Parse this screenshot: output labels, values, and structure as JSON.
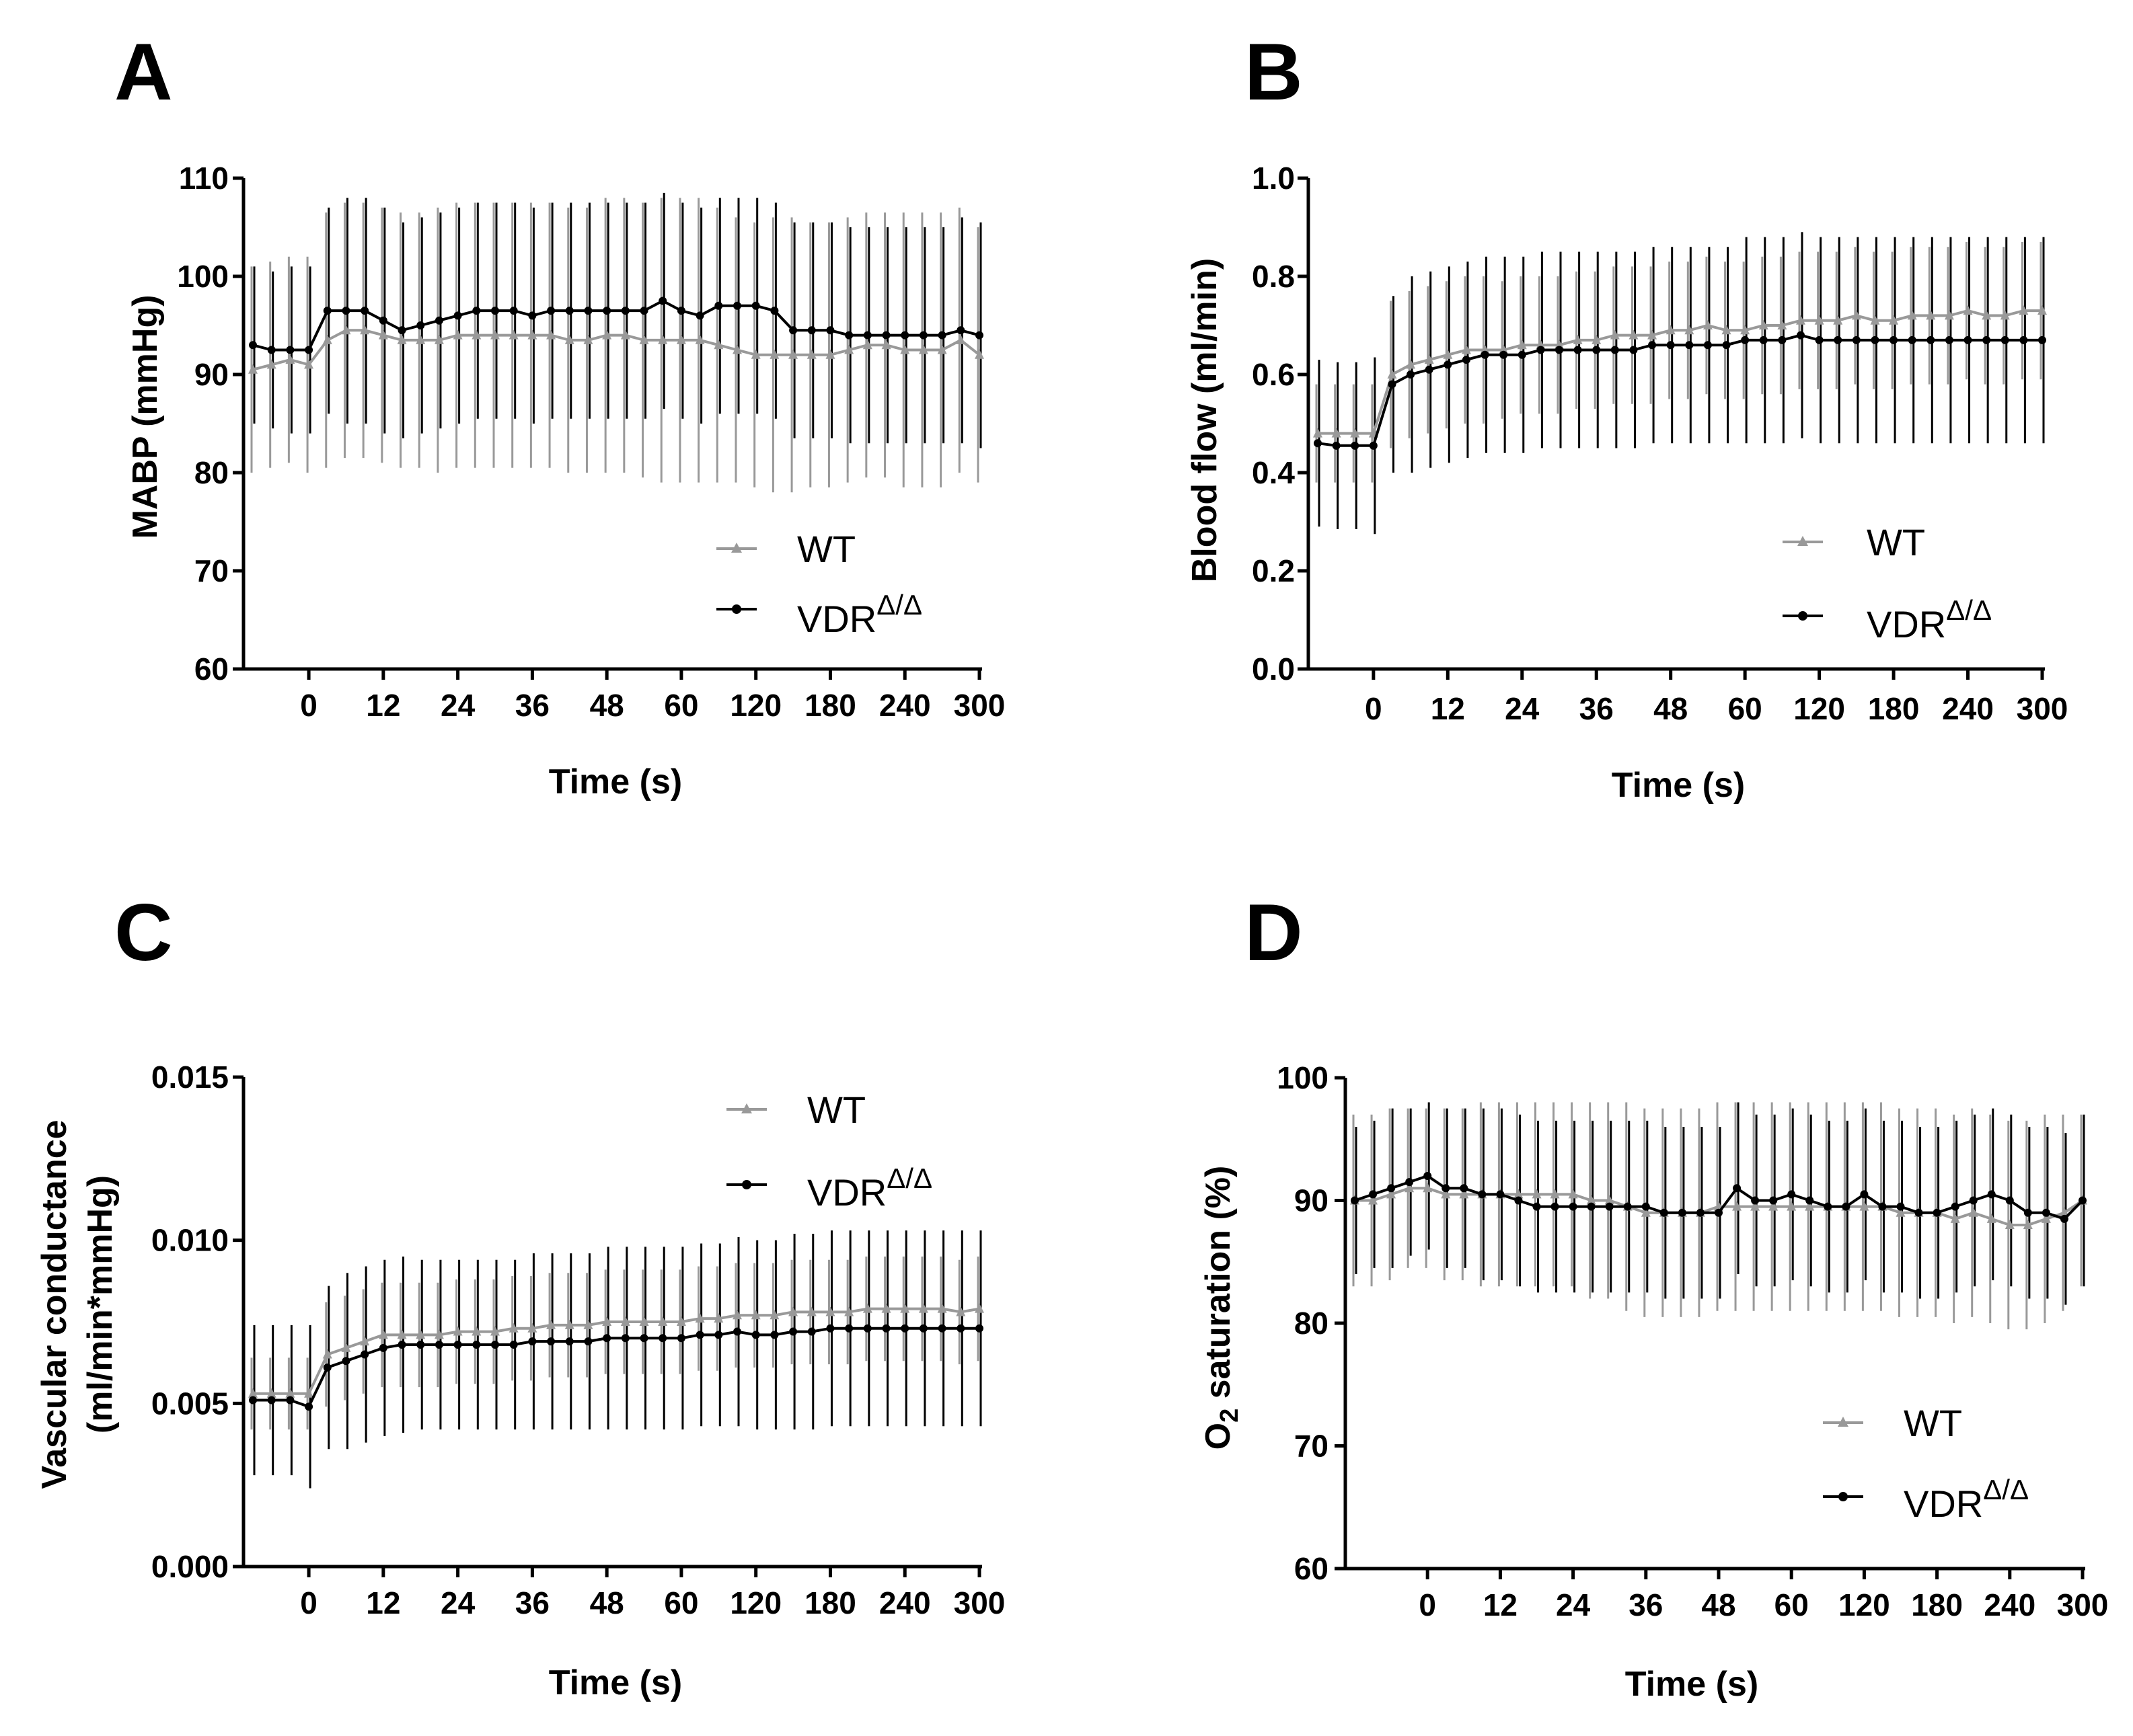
{
  "figure": {
    "panels": [
      "A",
      "B",
      "C",
      "D"
    ]
  },
  "chart_data": [
    {
      "type": "line",
      "panel": "A",
      "title": "",
      "xlabel": "Time (s)",
      "ylabel": "MABP (mmHg)",
      "ylim": [
        60,
        110
      ],
      "yticks": [
        "60",
        "70",
        "80",
        "90",
        "100",
        "110"
      ],
      "xticks": [
        "0",
        "12",
        "24",
        "36",
        "48",
        "60",
        "120",
        "180",
        "240",
        "300"
      ],
      "xtick_positions": [
        3,
        7,
        11,
        15,
        19,
        23,
        27,
        31,
        35,
        39
      ],
      "legend_position": "bottom-right",
      "n_points": 40,
      "series": [
        {
          "name": "WT",
          "color": "#999999",
          "marker": "triangle",
          "values": [
            90.5,
            91,
            91.5,
            91,
            93.5,
            94.5,
            94.5,
            94,
            93.5,
            93.5,
            93.5,
            94,
            94,
            94,
            94,
            94,
            94,
            93.5,
            93.5,
            94,
            94,
            93.5,
            93.5,
            93.5,
            93.5,
            93,
            92.5,
            92,
            92,
            92,
            92,
            92,
            92.5,
            93,
            93,
            92.5,
            92.5,
            92.5,
            93.5,
            92
          ],
          "errors": [
            10.5,
            10.5,
            10.5,
            11,
            13,
            13,
            13,
            13,
            13,
            13,
            13.5,
            13.5,
            13.5,
            13.5,
            13.5,
            13.5,
            13.5,
            13.5,
            13.5,
            14,
            14,
            14,
            14.5,
            14.5,
            14.5,
            14,
            13.5,
            13.5,
            14,
            14,
            13.5,
            13.5,
            13.5,
            13.5,
            13.5,
            14,
            14,
            14,
            13.5,
            13
          ]
        },
        {
          "name": "VDRΔ/Δ",
          "color": "#000000",
          "marker": "circle",
          "values": [
            93,
            92.5,
            92.5,
            92.5,
            96.5,
            96.5,
            96.5,
            95.5,
            94.5,
            95,
            95.5,
            96,
            96.5,
            96.5,
            96.5,
            96,
            96.5,
            96.5,
            96.5,
            96.5,
            96.5,
            96.5,
            97.5,
            96.5,
            96,
            97,
            97,
            97,
            96.5,
            94.5,
            94.5,
            94.5,
            94,
            94,
            94,
            94,
            94,
            94,
            94.5,
            94
          ],
          "errors": [
            8,
            8,
            8.5,
            8.5,
            10.5,
            11.5,
            11.5,
            11.5,
            11,
            11,
            11,
            11,
            11,
            11,
            11,
            11,
            11,
            11,
            11,
            11,
            11,
            11,
            11,
            11,
            11,
            11,
            11,
            11,
            11,
            11,
            11,
            11,
            11,
            11,
            11,
            11,
            11,
            11,
            11.5,
            11.5
          ]
        }
      ]
    },
    {
      "type": "line",
      "panel": "B",
      "title": "",
      "xlabel": "Time (s)",
      "ylabel": "Blood flow (ml/min)",
      "ylim": [
        0,
        1
      ],
      "yticks": [
        "0.0",
        "0.2",
        "0.4",
        "0.6",
        "0.8",
        "1.0"
      ],
      "xticks": [
        "0",
        "12",
        "24",
        "36",
        "48",
        "60",
        "120",
        "180",
        "240",
        "300"
      ],
      "xtick_positions": [
        3,
        7,
        11,
        15,
        19,
        23,
        27,
        31,
        35,
        39
      ],
      "legend_position": "bottom-right",
      "n_points": 40,
      "series": [
        {
          "name": "WT",
          "color": "#999999",
          "marker": "triangle",
          "values": [
            0.48,
            0.48,
            0.48,
            0.48,
            0.6,
            0.62,
            0.63,
            0.64,
            0.65,
            0.65,
            0.65,
            0.66,
            0.66,
            0.66,
            0.67,
            0.67,
            0.68,
            0.68,
            0.68,
            0.69,
            0.69,
            0.7,
            0.69,
            0.69,
            0.7,
            0.7,
            0.71,
            0.71,
            0.71,
            0.72,
            0.71,
            0.71,
            0.72,
            0.72,
            0.72,
            0.73,
            0.72,
            0.72,
            0.73,
            0.73
          ],
          "errors": [
            0.1,
            0.1,
            0.1,
            0.1,
            0.15,
            0.15,
            0.15,
            0.15,
            0.15,
            0.15,
            0.14,
            0.14,
            0.14,
            0.14,
            0.14,
            0.14,
            0.14,
            0.14,
            0.14,
            0.14,
            0.14,
            0.14,
            0.14,
            0.14,
            0.14,
            0.14,
            0.14,
            0.14,
            0.14,
            0.14,
            0.14,
            0.14,
            0.14,
            0.14,
            0.14,
            0.14,
            0.14,
            0.14,
            0.14,
            0.14
          ]
        },
        {
          "name": "VDRΔ/Δ",
          "color": "#000000",
          "marker": "circle",
          "values": [
            0.46,
            0.455,
            0.455,
            0.455,
            0.58,
            0.6,
            0.61,
            0.62,
            0.63,
            0.64,
            0.64,
            0.64,
            0.65,
            0.65,
            0.65,
            0.65,
            0.65,
            0.65,
            0.66,
            0.66,
            0.66,
            0.66,
            0.66,
            0.67,
            0.67,
            0.67,
            0.68,
            0.67,
            0.67,
            0.67,
            0.67,
            0.67,
            0.67,
            0.67,
            0.67,
            0.67,
            0.67,
            0.67,
            0.67,
            0.67
          ],
          "errors": [
            0.17,
            0.17,
            0.17,
            0.18,
            0.18,
            0.2,
            0.2,
            0.2,
            0.2,
            0.2,
            0.2,
            0.2,
            0.2,
            0.2,
            0.2,
            0.2,
            0.2,
            0.2,
            0.2,
            0.2,
            0.2,
            0.2,
            0.2,
            0.21,
            0.21,
            0.21,
            0.21,
            0.21,
            0.21,
            0.21,
            0.21,
            0.21,
            0.21,
            0.21,
            0.21,
            0.21,
            0.21,
            0.21,
            0.21,
            0.21
          ]
        }
      ]
    },
    {
      "type": "line",
      "panel": "C",
      "title": "",
      "xlabel": "Time (s)",
      "ylabel": "Vascular conductance",
      "ylabel2": "(ml/min*mmHg)",
      "ylim": [
        0,
        0.015
      ],
      "yticks": [
        "0.000",
        "0.005",
        "0.010",
        "0.015"
      ],
      "xticks": [
        "0",
        "12",
        "24",
        "36",
        "48",
        "60",
        "120",
        "180",
        "240",
        "300"
      ],
      "xtick_positions": [
        3,
        7,
        11,
        15,
        19,
        23,
        27,
        31,
        35,
        39
      ],
      "legend_position": "top-right",
      "n_points": 40,
      "series": [
        {
          "name": "WT",
          "color": "#999999",
          "marker": "triangle",
          "values": [
            0.0053,
            0.0053,
            0.0053,
            0.0053,
            0.0065,
            0.0067,
            0.0069,
            0.0071,
            0.0071,
            0.0071,
            0.0071,
            0.0072,
            0.0072,
            0.0072,
            0.0073,
            0.0073,
            0.0074,
            0.0074,
            0.0074,
            0.0075,
            0.0075,
            0.0075,
            0.0075,
            0.0075,
            0.0076,
            0.0076,
            0.0077,
            0.0077,
            0.0077,
            0.0078,
            0.0078,
            0.0078,
            0.0078,
            0.0079,
            0.0079,
            0.0079,
            0.0079,
            0.0079,
            0.0078,
            0.0079
          ],
          "errors": [
            0.0011,
            0.0011,
            0.0011,
            0.0011,
            0.0016,
            0.0016,
            0.0016,
            0.0016,
            0.0016,
            0.0016,
            0.0016,
            0.0016,
            0.0016,
            0.0016,
            0.0016,
            0.0016,
            0.0016,
            0.0016,
            0.0016,
            0.0016,
            0.0016,
            0.0016,
            0.0016,
            0.0016,
            0.0016,
            0.0016,
            0.0016,
            0.0016,
            0.0016,
            0.0016,
            0.0016,
            0.0016,
            0.0016,
            0.0016,
            0.0016,
            0.0016,
            0.0016,
            0.0016,
            0.0016,
            0.0016
          ]
        },
        {
          "name": "VDRΔ/Δ",
          "color": "#000000",
          "marker": "circle",
          "values": [
            0.0051,
            0.0051,
            0.0051,
            0.0049,
            0.0061,
            0.0063,
            0.0065,
            0.0067,
            0.0068,
            0.0068,
            0.0068,
            0.0068,
            0.0068,
            0.0068,
            0.0068,
            0.0069,
            0.0069,
            0.0069,
            0.0069,
            0.007,
            0.007,
            0.007,
            0.007,
            0.007,
            0.0071,
            0.0071,
            0.0072,
            0.0071,
            0.0071,
            0.0072,
            0.0072,
            0.0073,
            0.0073,
            0.0073,
            0.0073,
            0.0073,
            0.0073,
            0.0073,
            0.0073,
            0.0073
          ],
          "errors": [
            0.0023,
            0.0023,
            0.0023,
            0.0025,
            0.0025,
            0.0027,
            0.0027,
            0.0027,
            0.0027,
            0.0026,
            0.0026,
            0.0026,
            0.0026,
            0.0026,
            0.0026,
            0.0027,
            0.0027,
            0.0027,
            0.0027,
            0.0028,
            0.0028,
            0.0028,
            0.0028,
            0.0028,
            0.0028,
            0.0028,
            0.0029,
            0.0029,
            0.0029,
            0.003,
            0.003,
            0.003,
            0.003,
            0.003,
            0.003,
            0.003,
            0.003,
            0.003,
            0.003,
            0.003
          ]
        }
      ]
    },
    {
      "type": "line",
      "panel": "D",
      "title": "",
      "xlabel": "Time (s)",
      "ylabel": "O",
      "ylabel_sub": "2",
      "ylabel_rest": " saturation (%)",
      "ylim": [
        60,
        100
      ],
      "yticks": [
        "60",
        "70",
        "80",
        "90",
        "100"
      ],
      "xticks": [
        "0",
        "12",
        "24",
        "36",
        "48",
        "60",
        "120",
        "180",
        "240",
        "300"
      ],
      "xtick_positions": [
        4,
        8,
        12,
        16,
        20,
        24,
        28,
        32,
        36,
        40
      ],
      "legend_position": "bottom-right",
      "n_points": 41,
      "series": [
        {
          "name": "WT",
          "color": "#999999",
          "marker": "triangle",
          "values": [
            90,
            90,
            90.5,
            91,
            91,
            90.5,
            90.5,
            90.5,
            90.5,
            90.5,
            90.5,
            90.5,
            90.5,
            90,
            90,
            89.5,
            89,
            89,
            89,
            89,
            89.5,
            89.5,
            89.5,
            89.5,
            89.5,
            89.5,
            89.5,
            89.5,
            89.5,
            89.5,
            89,
            89,
            89,
            88.5,
            89,
            88.5,
            88,
            88,
            88.5,
            89,
            90
          ],
          "errors": [
            7,
            7,
            7,
            6.5,
            6.5,
            7,
            7,
            7.5,
            7.5,
            7.5,
            7.5,
            7.5,
            7.5,
            8,
            8,
            8.5,
            8.5,
            8.5,
            8.5,
            8.5,
            8.5,
            8.5,
            8.5,
            8.5,
            8.5,
            8.5,
            8.5,
            8.5,
            8.5,
            8.5,
            8.5,
            8.5,
            8.5,
            8.5,
            8.5,
            8.5,
            8.5,
            8.5,
            8.5,
            8,
            7
          ]
        },
        {
          "name": "VDRΔ/Δ",
          "color": "#000000",
          "marker": "circle",
          "values": [
            90,
            90.5,
            91,
            91.5,
            92,
            91,
            91,
            90.5,
            90.5,
            90,
            89.5,
            89.5,
            89.5,
            89.5,
            89.5,
            89.5,
            89.5,
            89,
            89,
            89,
            89,
            91,
            90,
            90,
            90.5,
            90,
            89.5,
            89.5,
            90.5,
            89.5,
            89.5,
            89,
            89,
            89.5,
            90,
            90.5,
            90,
            89,
            89,
            88.5,
            90
          ],
          "errors": [
            6,
            6,
            6.5,
            6,
            6,
            6.5,
            6.5,
            7,
            7,
            7,
            7,
            7,
            7,
            7,
            7,
            7,
            7,
            7,
            7,
            7,
            7,
            7,
            7,
            7,
            7,
            7,
            7,
            7,
            7,
            7,
            7,
            7,
            7,
            7,
            7,
            7,
            7,
            7,
            7,
            7,
            7
          ]
        }
      ]
    }
  ]
}
